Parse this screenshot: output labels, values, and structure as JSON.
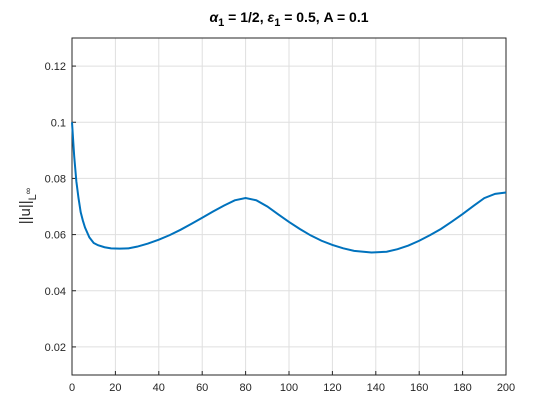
{
  "chart_data": {
    "type": "line",
    "title": [
      "α",
      "1",
      " = 1/2, ",
      "ε",
      "1",
      " = 0.5, A = 0.1"
    ],
    "y_label": [
      "||u||",
      "L",
      "∞"
    ],
    "x": [
      0,
      1,
      2,
      3,
      4,
      5,
      6,
      8,
      10,
      12,
      15,
      18,
      22,
      26,
      30,
      35,
      40,
      45,
      50,
      55,
      60,
      65,
      70,
      75,
      80,
      85,
      90,
      95,
      100,
      105,
      110,
      115,
      120,
      125,
      130,
      138,
      145,
      150,
      155,
      160,
      165,
      170,
      175,
      180,
      185,
      190,
      195,
      200
    ],
    "series": [
      {
        "color": "#0072bd",
        "values": [
          0.1,
          0.088,
          0.079,
          0.073,
          0.068,
          0.065,
          0.0625,
          0.059,
          0.057,
          0.0562,
          0.0555,
          0.0551,
          0.055,
          0.0551,
          0.0557,
          0.0568,
          0.0582,
          0.0598,
          0.0617,
          0.0638,
          0.066,
          0.0682,
          0.0703,
          0.0722,
          0.073,
          0.0722,
          0.07,
          0.0672,
          0.0645,
          0.062,
          0.0597,
          0.0578,
          0.0563,
          0.0551,
          0.0542,
          0.0536,
          0.0539,
          0.0548,
          0.0561,
          0.0578,
          0.0598,
          0.062,
          0.0646,
          0.0673,
          0.0702,
          0.073,
          0.0745,
          0.075
        ]
      }
    ],
    "xlim": [
      0,
      200
    ],
    "xticks": [
      0,
      20,
      40,
      60,
      80,
      100,
      120,
      140,
      160,
      180,
      200
    ],
    "ylim": [
      0.01,
      0.13
    ],
    "yticks": [
      0.02,
      0.04,
      0.06,
      0.08,
      0.1,
      0.12
    ],
    "grid": true
  }
}
